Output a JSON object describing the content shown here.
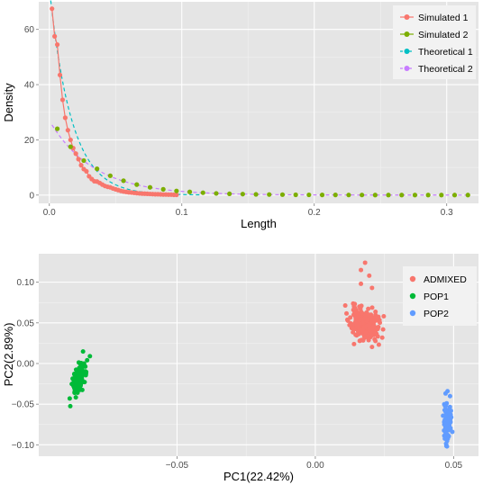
{
  "colors": {
    "panel": "#e5e5e5",
    "grid_major": "#ffffff",
    "grid_minor": "#f2f2f2",
    "red": "#f8766d",
    "olive": "#7cae00",
    "cyan": "#00bfc4",
    "purple": "#c77cff",
    "green": "#00ba38",
    "blue": "#619cff"
  },
  "chart_data": [
    {
      "type": "line",
      "xlabel": "Length",
      "ylabel": "Density",
      "xlim": [
        -0.008,
        0.324
      ],
      "ylim": [
        -3,
        70
      ],
      "xticks": [
        0.0,
        0.1,
        0.2,
        0.3
      ],
      "xtick_labels": [
        "0.0",
        "0.1",
        "0.2",
        "0.3"
      ],
      "yticks": [
        0,
        20,
        40,
        60
      ],
      "ytick_labels": [
        "0",
        "20",
        "40",
        "60"
      ],
      "grid": true,
      "legend_position": "top-right",
      "series": [
        {
          "name": "Simulated 1",
          "style": "points-line",
          "color_key": "red",
          "x": [
            0.002,
            0.004,
            0.006,
            0.008,
            0.01,
            0.012,
            0.014,
            0.016,
            0.018,
            0.02,
            0.022,
            0.024,
            0.026,
            0.028,
            0.03,
            0.032,
            0.034,
            0.036,
            0.038,
            0.04,
            0.042,
            0.044,
            0.046,
            0.048,
            0.05,
            0.052,
            0.054,
            0.056,
            0.058,
            0.06,
            0.062,
            0.064,
            0.066,
            0.068,
            0.07,
            0.072,
            0.074,
            0.076,
            0.078,
            0.08,
            0.082,
            0.084,
            0.086,
            0.088,
            0.09,
            0.092,
            0.094,
            0.096
          ],
          "y": [
            67.5,
            57.5,
            54.5,
            43.5,
            34.5,
            28.0,
            23.5,
            20.0,
            17.0,
            15.0,
            13.0,
            10.8,
            9.4,
            8.6,
            6.8,
            5.8,
            5.0,
            4.9,
            4.4,
            3.8,
            3.3,
            3.0,
            2.8,
            2.4,
            2.1,
            1.8,
            1.5,
            1.3,
            1.15,
            1.0,
            0.9,
            0.8,
            0.7,
            0.6,
            0.55,
            0.5,
            0.45,
            0.4,
            0.35,
            0.3,
            0.3,
            0.25,
            0.2,
            0.2,
            0.15,
            0.15,
            0.1,
            0.1
          ]
        },
        {
          "name": "Simulated 2",
          "style": "points",
          "color_key": "olive",
          "x": [
            0.006,
            0.016,
            0.026,
            0.036,
            0.046,
            0.056,
            0.066,
            0.076,
            0.086,
            0.096,
            0.106,
            0.116,
            0.126,
            0.136,
            0.146,
            0.156,
            0.166,
            0.176,
            0.186,
            0.196,
            0.206,
            0.216,
            0.226,
            0.236,
            0.246,
            0.256,
            0.266,
            0.276,
            0.286,
            0.296,
            0.306,
            0.316
          ],
          "y": [
            24.0,
            17.5,
            12.5,
            9.5,
            7.0,
            5.2,
            3.8,
            2.8,
            2.1,
            1.5,
            1.15,
            0.85,
            0.6,
            0.45,
            0.35,
            0.25,
            0.2,
            0.15,
            0.1,
            0.08,
            0.06,
            0.05,
            0.04,
            0.03,
            0.02,
            0.02,
            0.015,
            0.01,
            0.01,
            0.01,
            0.005,
            0.005
          ]
        },
        {
          "name": "Theoretical 1",
          "style": "dashed",
          "color_key": "cyan",
          "model": {
            "amp": 75,
            "rate": 60,
            "xmin": 0.0,
            "xmax": 0.115
          }
        },
        {
          "name": "Theoretical 2",
          "style": "dashed",
          "color_key": "purple",
          "model": {
            "amp": 27,
            "rate": 30,
            "xmin": 0.002,
            "xmax": 0.316
          }
        }
      ]
    },
    {
      "type": "scatter",
      "xlabel": "PC1(22.42%)",
      "ylabel": "PC2(2.89%)",
      "xlim": [
        -0.1,
        0.059
      ],
      "ylim": [
        -0.114,
        0.135
      ],
      "xticks": [
        -0.05,
        0.0,
        0.05
      ],
      "xtick_labels": [
        "−0.05",
        "0.00",
        "0.05"
      ],
      "yticks": [
        0.1,
        0.05,
        0.0,
        -0.05,
        -0.1
      ],
      "ytick_labels": [
        "0.10",
        "0.05",
        "0.00",
        "−0.05",
        "−0.10"
      ],
      "grid": true,
      "legend_position": "top-right",
      "series": [
        {
          "name": "ADMIXED",
          "color_key": "red",
          "cluster": {
            "cx": 0.0175,
            "cy": 0.048,
            "sx": 0.0025,
            "sy": 0.01,
            "rho": -0.25,
            "n": 240,
            "seed": 11
          },
          "extra_points": [
            [
              0.018,
              0.124
            ],
            [
              0.0165,
              0.115
            ],
            [
              0.0195,
              0.108
            ],
            [
              0.0165,
              0.098
            ],
            [
              0.0205,
              0.093
            ]
          ]
        },
        {
          "name": "POP1",
          "color_key": "green",
          "cluster": {
            "cx": -0.0855,
            "cy": -0.019,
            "sx": 0.0012,
            "sy": 0.01,
            "rho": 0.6,
            "n": 130,
            "seed": 23
          },
          "extra_points": [
            [
              -0.0815,
              0.009
            ],
            [
              -0.0825,
              0.004
            ],
            [
              -0.0888,
              -0.043
            ]
          ]
        },
        {
          "name": "POP2",
          "color_key": "blue",
          "cluster": {
            "cx": 0.0478,
            "cy": -0.071,
            "sx": 0.0006,
            "sy": 0.011,
            "rho": 0.0,
            "n": 130,
            "seed": 37
          },
          "extra_points": [
            [
              0.0478,
              -0.034
            ],
            [
              0.0476,
              -0.102
            ]
          ]
        }
      ]
    }
  ]
}
